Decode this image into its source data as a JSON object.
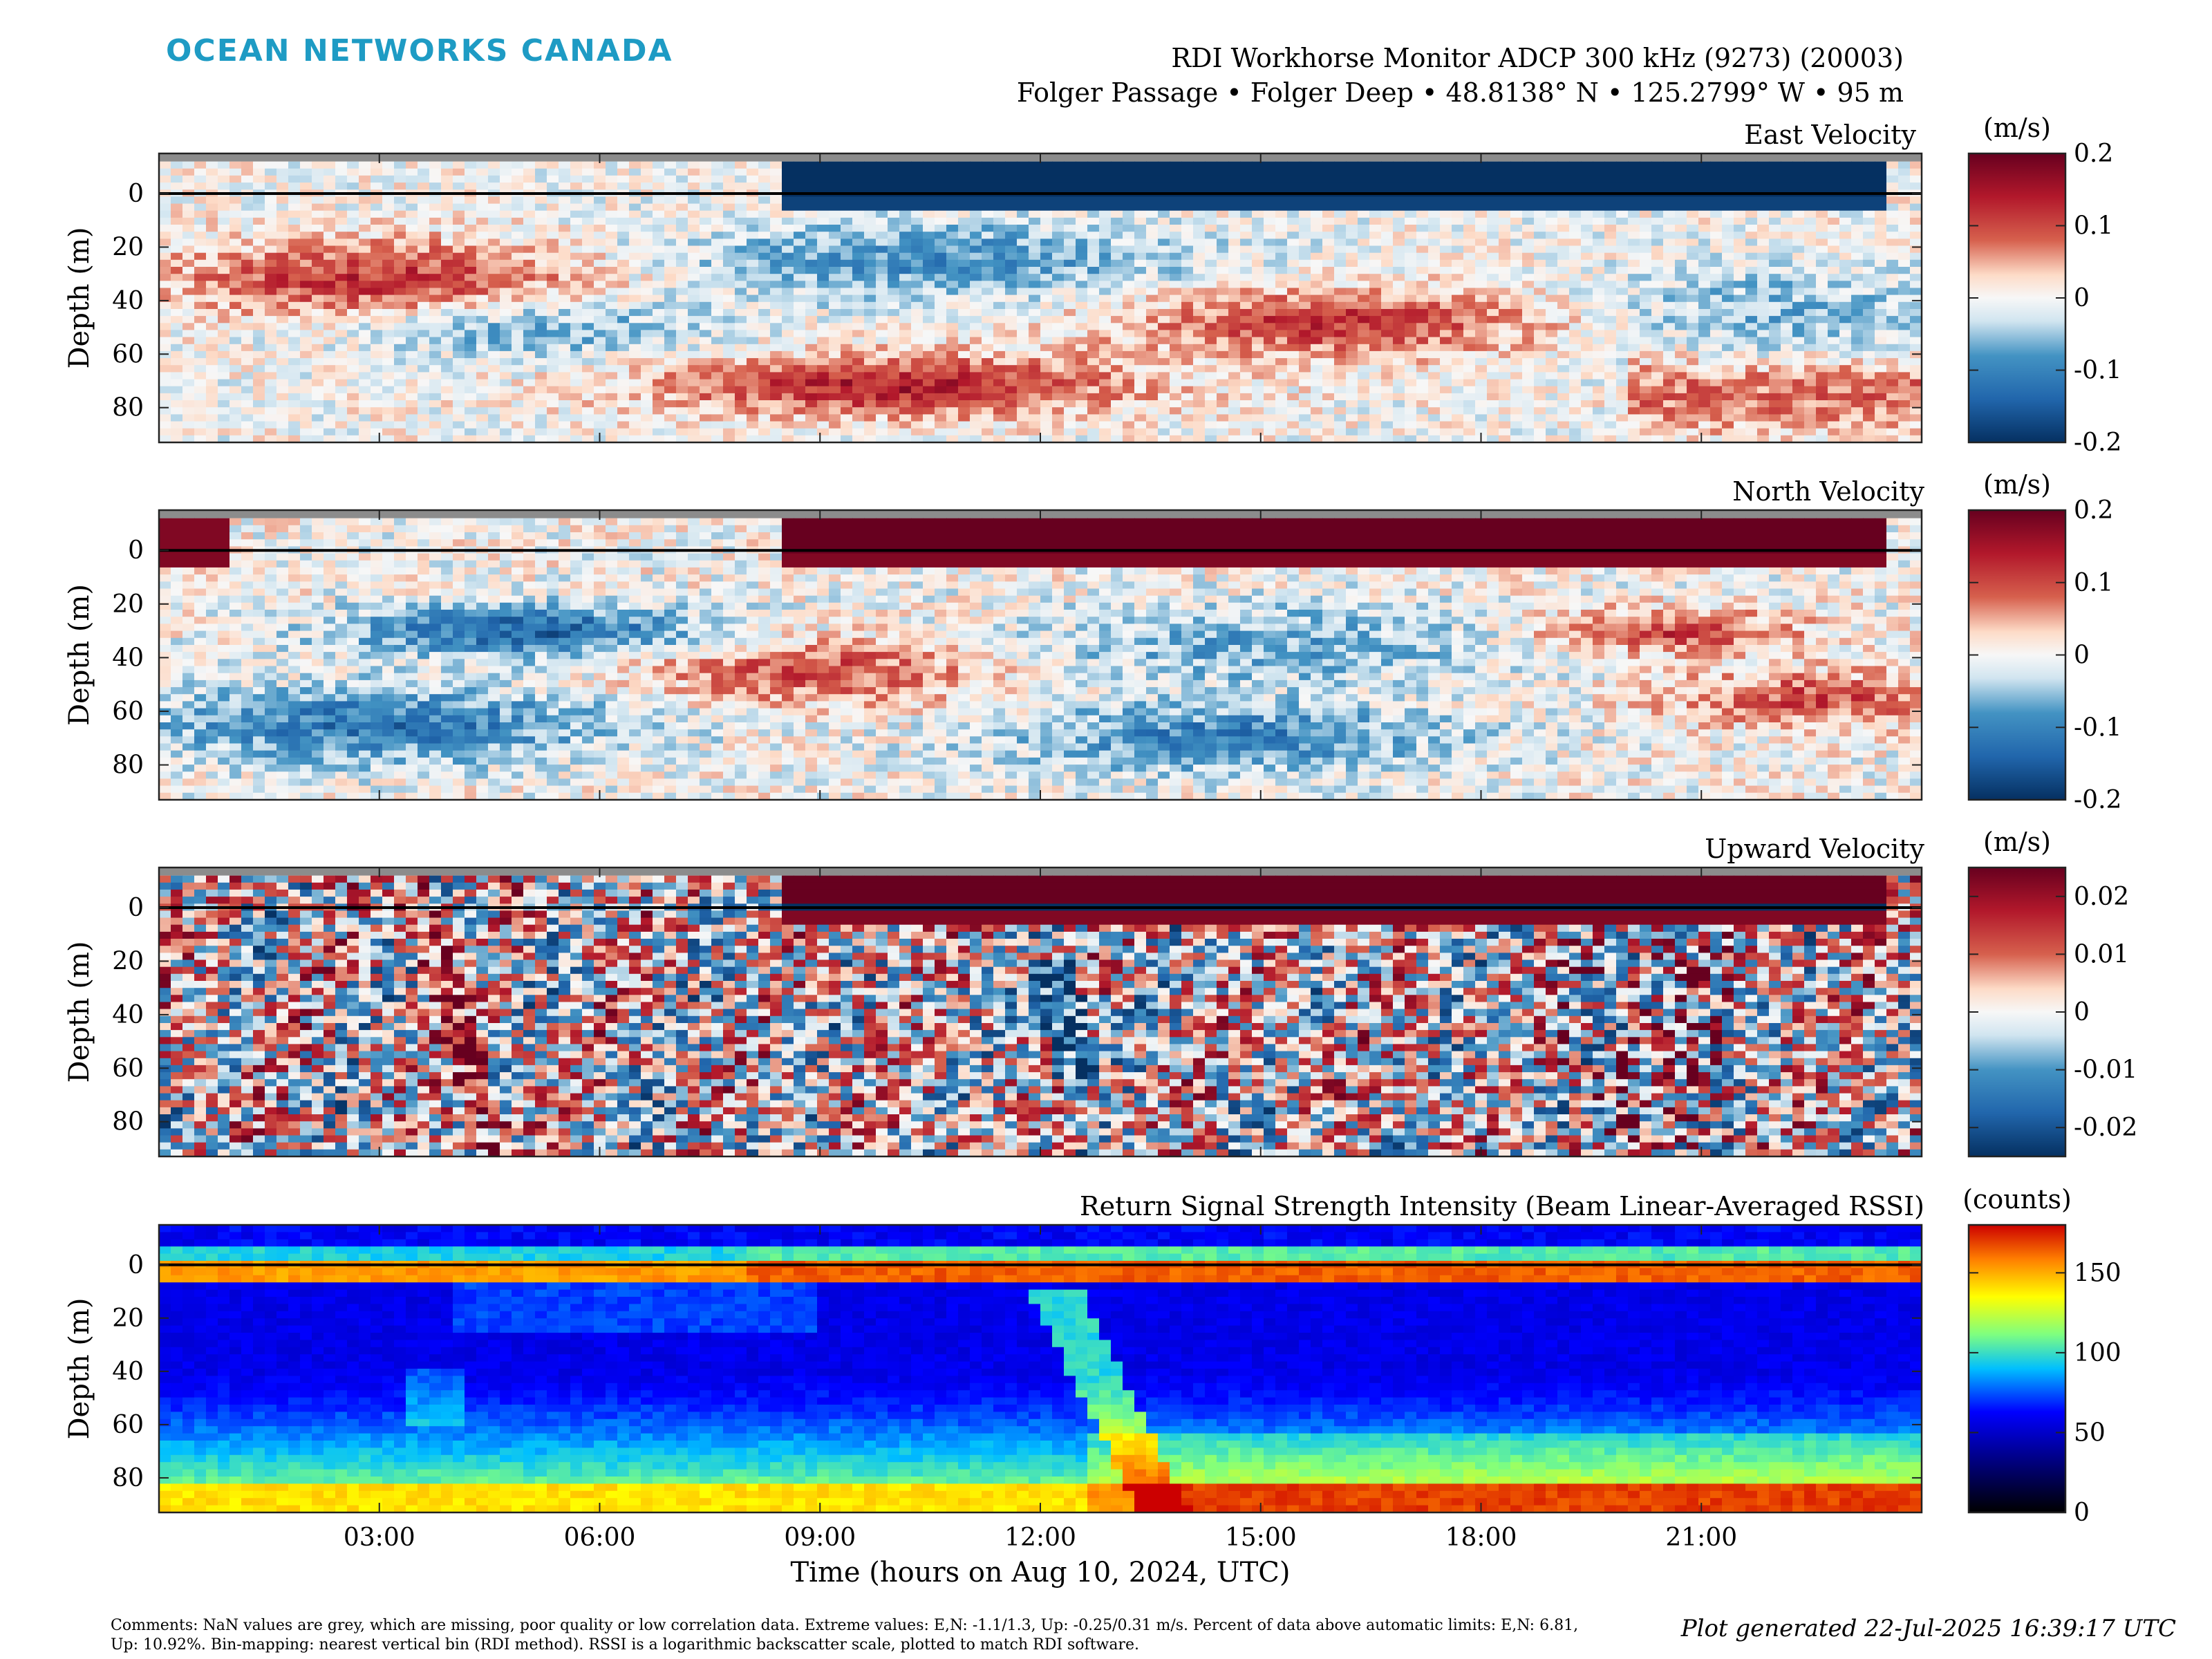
{
  "header": {
    "logo": "OCEAN NETWORKS CANADA",
    "line1": "RDI Workhorse Monitor ADCP 300 kHz (9273) (20003)",
    "line2": "Folger Passage • Folger Deep • 48.8138° N • 125.2799° W • 95 m"
  },
  "x_axis": {
    "label": "Time (hours on Aug 10, 2024, UTC)",
    "ticks": [
      "03:00",
      "06:00",
      "09:00",
      "12:00",
      "15:00",
      "18:00",
      "21:00"
    ],
    "tick_hours": [
      3,
      6,
      9,
      12,
      15,
      18,
      21
    ],
    "range_hours": [
      0,
      24
    ]
  },
  "chart_data": [
    {
      "type": "heatmap",
      "title": "East Velocity",
      "ylabel": "Depth (m)",
      "yticks": [
        0,
        20,
        40,
        60,
        80
      ],
      "ylim": [
        -15,
        93
      ],
      "colorbar_unit": "(m/s)",
      "colorbar_ticks": [
        "0.2",
        "0.1",
        "0",
        "-0.1",
        "-0.2"
      ],
      "colorbar_range": [
        -0.2,
        0.2
      ],
      "colormap": "blue-white-red"
    },
    {
      "type": "heatmap",
      "title": "North Velocity",
      "ylabel": "Depth (m)",
      "yticks": [
        0,
        20,
        40,
        60,
        80
      ],
      "ylim": [
        -15,
        93
      ],
      "colorbar_unit": "(m/s)",
      "colorbar_ticks": [
        "0.2",
        "0.1",
        "0",
        "-0.1",
        "-0.2"
      ],
      "colorbar_range": [
        -0.2,
        0.2
      ],
      "colormap": "blue-white-red"
    },
    {
      "type": "heatmap",
      "title": "Upward Velocity",
      "ylabel": "Depth (m)",
      "yticks": [
        0,
        20,
        40,
        60,
        80
      ],
      "ylim": [
        -15,
        93
      ],
      "colorbar_unit": "(m/s)",
      "colorbar_ticks": [
        "0.02",
        "0.01",
        "0",
        "-0.01",
        "-0.02"
      ],
      "colorbar_range": [
        -0.025,
        0.025
      ],
      "colormap": "blue-white-red"
    },
    {
      "type": "heatmap",
      "title": "Return Signal Strength Intensity (Beam Linear-Averaged RSSI)",
      "ylabel": "Depth (m)",
      "yticks": [
        0,
        20,
        40,
        60,
        80
      ],
      "ylim": [
        -15,
        93
      ],
      "colorbar_unit": "(counts)",
      "colorbar_ticks": [
        "150",
        "100",
        "50",
        "0"
      ],
      "colorbar_range": [
        0,
        180
      ],
      "colormap": "jet"
    }
  ],
  "colors": {
    "nan_grey": "#8c8c8c",
    "logo_blue": "#1e9bc4"
  },
  "footer": {
    "comments": "Comments: NaN values are grey, which are missing, poor quality or low correlation data. Extreme values: E,N: -1.1/1.3, Up: -0.25/0.31 m/s. Percent of data above automatic limits: E,N: 6.81, Up: 10.92%. Bin-mapping: nearest vertical bin (RDI method). RSSI is a logarithmic backscatter scale, plotted to match RDI software.",
    "generated": "Plot generated 22-Jul-2025 16:39:17 UTC"
  }
}
